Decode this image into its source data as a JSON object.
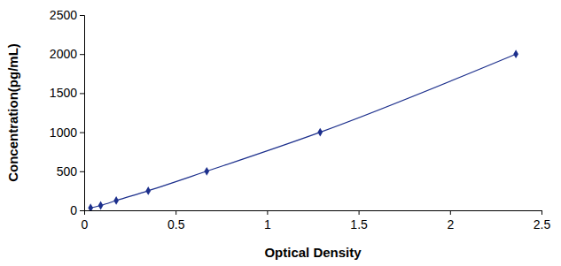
{
  "chart_data": {
    "type": "line",
    "x_label": "Optical Density",
    "y_label": "Concentration(pg/mL)",
    "x": [
      0.035,
      0.09,
      0.175,
      0.35,
      0.67,
      1.29,
      2.36
    ],
    "values": [
      31.25,
      62.5,
      125,
      250,
      500,
      1000,
      2000
    ],
    "color": "#1c2f8c",
    "marker": "diamond",
    "xlim": [
      0,
      2.5
    ],
    "xticks": [
      0,
      0.5,
      1,
      1.5,
      2,
      2.5
    ],
    "ylim": [
      0,
      2500
    ],
    "yticks": [
      0,
      500,
      1000,
      1500,
      2000,
      2500
    ],
    "grid": false
  }
}
